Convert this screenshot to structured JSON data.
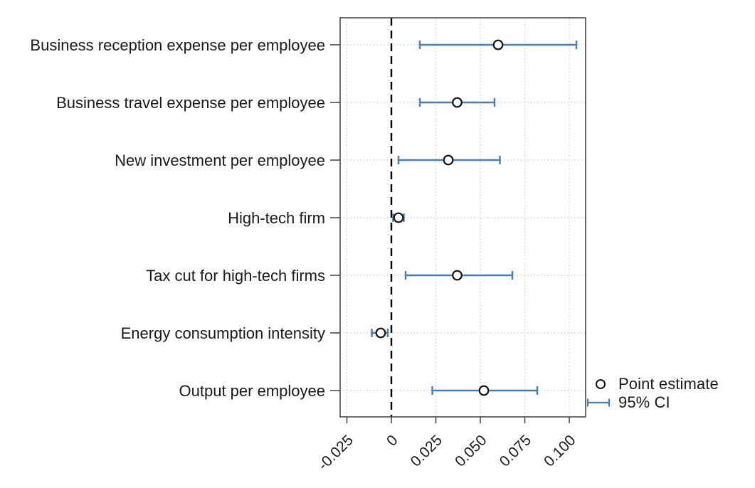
{
  "chart_data": {
    "type": "scatter",
    "subtype": "coefficient-plot-with-95ci",
    "orientation": "horizontal",
    "title": "",
    "xlabel": "",
    "ylabel": "",
    "categories": [
      "Business reception expense per employee",
      "Business travel expense per employee",
      "New investment per employee",
      "High-tech firm",
      "Tax cut for high-tech firms",
      "Energy consumption intensity",
      "Output per employee"
    ],
    "estimates": [
      0.06,
      0.037,
      0.032,
      0.004,
      0.037,
      -0.006,
      0.052
    ],
    "ci_low": [
      0.016,
      0.016,
      0.004,
      0.001,
      0.008,
      -0.011,
      0.023
    ],
    "ci_high": [
      0.104,
      0.058,
      0.061,
      0.007,
      0.068,
      -0.002,
      0.082
    ],
    "x_ticks": [
      -0.025,
      0,
      0.025,
      0.05,
      0.075,
      0.1
    ],
    "x_tick_labels": [
      "-0.025",
      "0",
      "0.025",
      "0.050",
      "0.075",
      "0.100"
    ],
    "xlim": [
      -0.029,
      0.11
    ],
    "zero_line": 0,
    "grid": {
      "vertical": "dotted",
      "horizontal": "dotted"
    },
    "legend": {
      "position": "outside-right-bottom",
      "entries": [
        {
          "marker": "open-circle",
          "label": "Point estimate"
        },
        {
          "marker": "ci-line-with-caps",
          "label": "95% CI"
        }
      ]
    },
    "colors": {
      "ci": "#4a7cb5",
      "marker_stroke": "#141414",
      "marker_fill": "#ffffff",
      "grid": "#c7c7c7",
      "zero_line": "#000000",
      "axis_border": "#3d3d3d",
      "tick": "#4d4d4d",
      "text": "#1a1a1a",
      "background": "#ffffff"
    }
  }
}
